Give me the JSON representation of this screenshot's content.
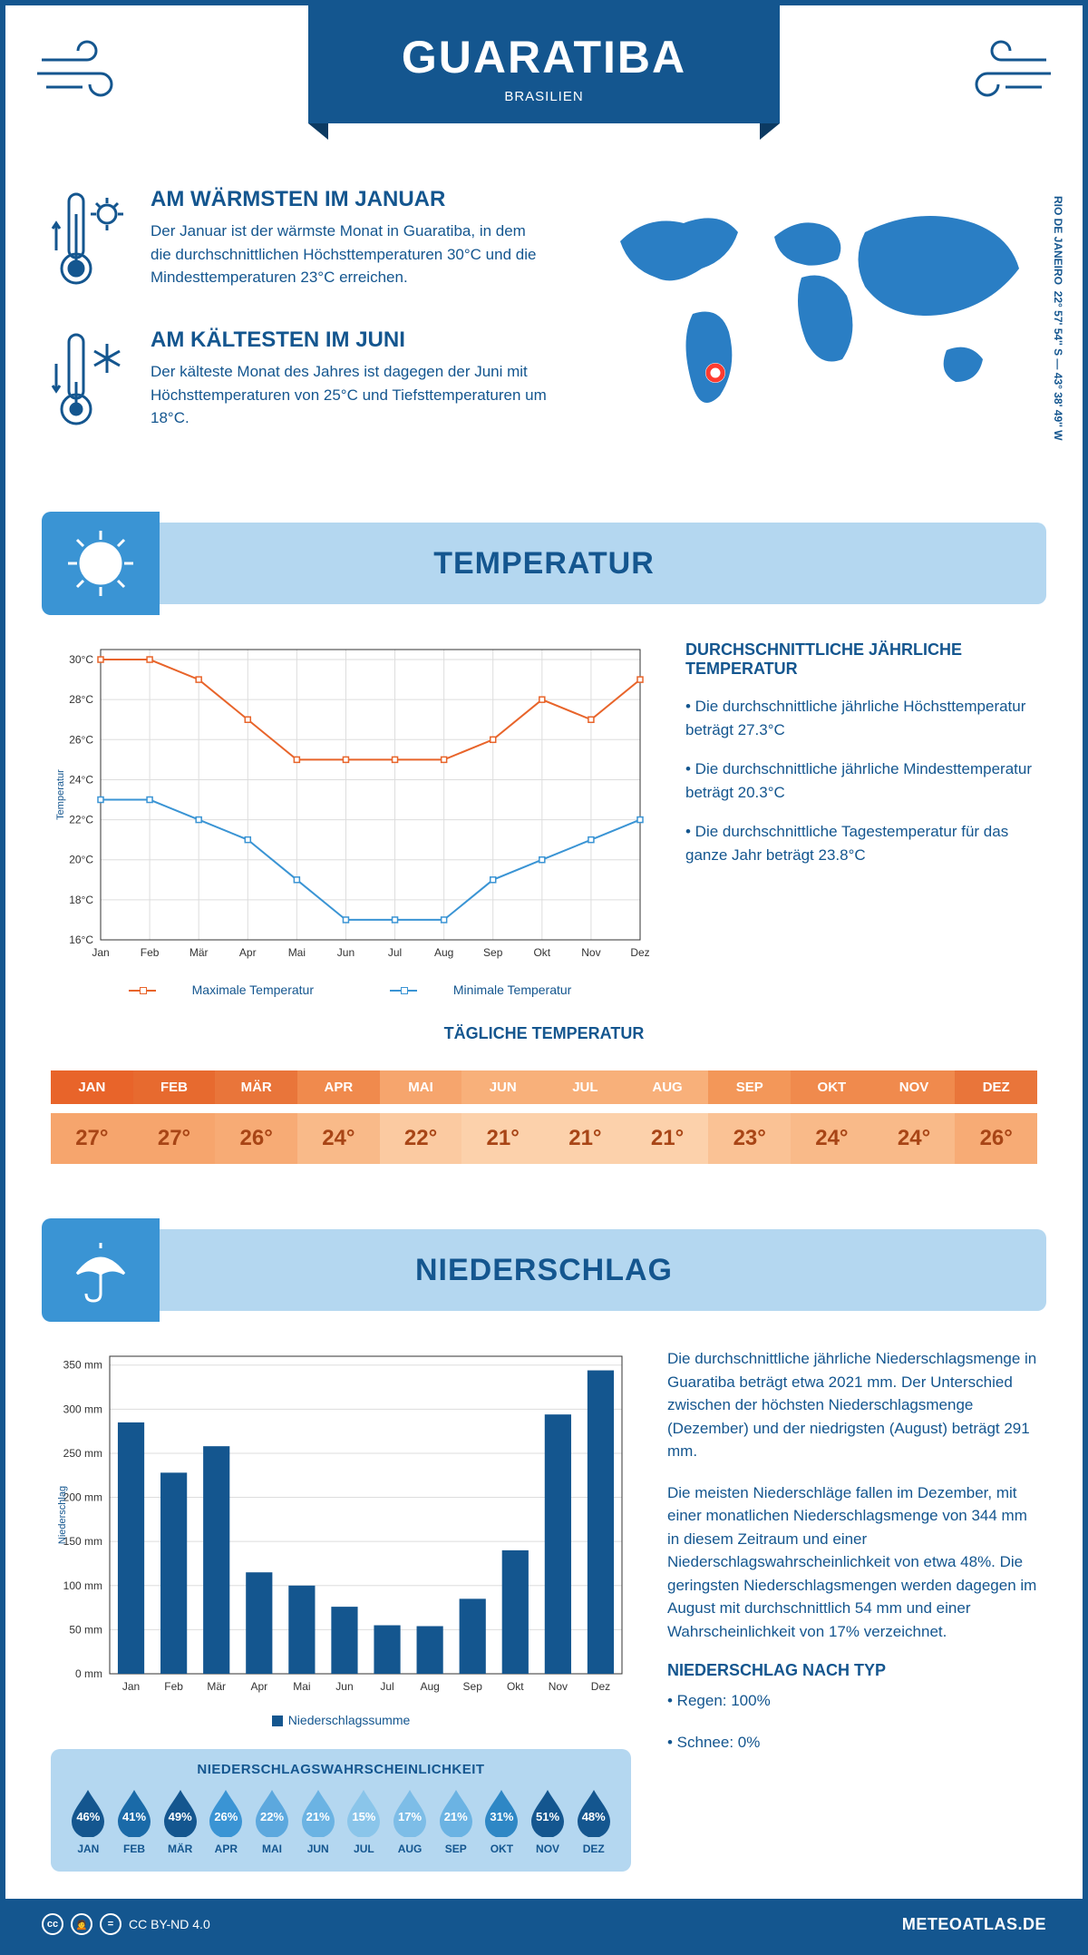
{
  "header": {
    "title": "GUARATIBA",
    "subtitle": "BRASILIEN"
  },
  "coords": {
    "line": "22° 57' 54'' S — 43° 38' 49'' W",
    "region": "RIO DE JANEIRO"
  },
  "intro": {
    "warm": {
      "title": "AM WÄRMSTEN IM JANUAR",
      "text": "Der Januar ist der wärmste Monat in Guaratiba, in dem die durchschnittlichen Höchsttemperaturen 30°C und die Mindesttemperaturen 23°C erreichen."
    },
    "cold": {
      "title": "AM KÄLTESTEN IM JUNI",
      "text": "Der kälteste Monat des Jahres ist dagegen der Juni mit Höchsttemperaturen von 25°C und Tiefsttemperaturen um 18°C."
    }
  },
  "sections": {
    "temp": "TEMPERATUR",
    "precip": "NIEDERSCHLAG"
  },
  "temp_chart": {
    "type": "line",
    "y_label": "Temperatur",
    "months": [
      "Jan",
      "Feb",
      "Mär",
      "Apr",
      "Mai",
      "Jun",
      "Jul",
      "Aug",
      "Sep",
      "Okt",
      "Nov",
      "Dez"
    ],
    "yticks": [
      16,
      18,
      20,
      22,
      24,
      26,
      28,
      30
    ],
    "ytick_labels": [
      "16°C",
      "18°C",
      "20°C",
      "22°C",
      "24°C",
      "26°C",
      "28°C",
      "30°C"
    ],
    "ylim": [
      16,
      30.5
    ],
    "series": [
      {
        "name": "Maximale Temperatur",
        "color": "#e8642a",
        "values": [
          30,
          30,
          29,
          27,
          25,
          25,
          25,
          25,
          26,
          28,
          27,
          29
        ]
      },
      {
        "name": "Minimale Temperatur",
        "color": "#3a94d4",
        "values": [
          23,
          23,
          22,
          21,
          19,
          17,
          17,
          17,
          19,
          20,
          21,
          22
        ]
      }
    ],
    "grid_color": "#dddddd",
    "axis_color": "#333333",
    "label_fontsize": 12,
    "background_color": "#ffffff"
  },
  "temp_side": {
    "title": "DURCHSCHNITTLICHE JÄHRLICHE TEMPERATUR",
    "bullets": [
      "• Die durchschnittliche jährliche Höchsttemperatur beträgt 27.3°C",
      "• Die durchschnittliche jährliche Mindesttemperatur beträgt 20.3°C",
      "• Die durchschnittliche Tagestemperatur für das ganze Jahr beträgt 23.8°C"
    ]
  },
  "daily_temp": {
    "title": "TÄGLICHE TEMPERATUR",
    "months": [
      "JAN",
      "FEB",
      "MÄR",
      "APR",
      "MAI",
      "JUN",
      "JUL",
      "AUG",
      "SEP",
      "OKT",
      "NOV",
      "DEZ"
    ],
    "values": [
      "27°",
      "27°",
      "26°",
      "24°",
      "22°",
      "21°",
      "21°",
      "21°",
      "23°",
      "24°",
      "24°",
      "26°"
    ],
    "top_colors": [
      "#e8642a",
      "#e76a2f",
      "#e9753a",
      "#f08a4d",
      "#f6a56d",
      "#f8b07a",
      "#f8b07a",
      "#f8b07a",
      "#f39759",
      "#f08a4d",
      "#f08a4d",
      "#e9753a"
    ],
    "bot_colors": [
      "#f6a56d",
      "#f6a56d",
      "#f7ab75",
      "#f9ba89",
      "#fbcaa1",
      "#fcd1ab",
      "#fcd1ab",
      "#fcd1ab",
      "#fac295",
      "#f9ba89",
      "#f9ba89",
      "#f7ab75"
    ],
    "top_text_color": "#ffffff",
    "bot_text_color": "#a84516"
  },
  "precip_chart": {
    "type": "bar",
    "y_label": "Niederschlag",
    "months": [
      "Jan",
      "Feb",
      "Mär",
      "Apr",
      "Mai",
      "Jun",
      "Jul",
      "Aug",
      "Sep",
      "Okt",
      "Nov",
      "Dez"
    ],
    "yticks": [
      0,
      50,
      100,
      150,
      200,
      250,
      300,
      350
    ],
    "ytick_labels": [
      "0 mm",
      "50 mm",
      "100 mm",
      "150 mm",
      "200 mm",
      "250 mm",
      "300 mm",
      "350 mm"
    ],
    "ylim": [
      0,
      360
    ],
    "values": [
      285,
      228,
      258,
      115,
      100,
      76,
      55,
      54,
      85,
      140,
      294,
      344
    ],
    "bar_color": "#14568f",
    "grid_color": "#dddddd",
    "axis_color": "#333333",
    "label_fontsize": 12,
    "legend": "Niederschlagssumme"
  },
  "precip_text": {
    "p1": "Die durchschnittliche jährliche Niederschlagsmenge in Guaratiba beträgt etwa 2021 mm. Der Unterschied zwischen der höchsten Niederschlagsmenge (Dezember) und der niedrigsten (August) beträgt 291 mm.",
    "p2": "Die meisten Niederschläge fallen im Dezember, mit einer monatlichen Niederschlagsmenge von 344 mm in diesem Zeitraum und einer Niederschlagswahrscheinlichkeit von etwa 48%. Die geringsten Niederschlagsmengen werden dagegen im August mit durchschnittlich 54 mm und einer Wahrscheinlichkeit von 17% verzeichnet.",
    "type_title": "NIEDERSCHLAG NACH TYP",
    "type_rain": "• Regen: 100%",
    "type_snow": "• Schnee: 0%"
  },
  "prob": {
    "title": "NIEDERSCHLAGSWAHRSCHEINLICHKEIT",
    "months": [
      "JAN",
      "FEB",
      "MÄR",
      "APR",
      "MAI",
      "JUN",
      "JUL",
      "AUG",
      "SEP",
      "OKT",
      "NOV",
      "DEZ"
    ],
    "values": [
      "46%",
      "41%",
      "49%",
      "26%",
      "22%",
      "21%",
      "15%",
      "17%",
      "21%",
      "31%",
      "51%",
      "48%"
    ],
    "colors": [
      "#14568f",
      "#1a6aa8",
      "#14568f",
      "#3a94d4",
      "#5ca8de",
      "#6bb3e3",
      "#8ac5ea",
      "#7dbde7",
      "#6bb3e3",
      "#2e87c5",
      "#14568f",
      "#14568f"
    ]
  },
  "footer": {
    "license": "CC BY-ND 4.0",
    "brand": "METEOATLAS.DE"
  },
  "colors": {
    "primary": "#14568f",
    "light_blue": "#b4d7f0",
    "mid_blue": "#3a94d4",
    "map_blue": "#2a7ec4",
    "marker_fill": "#ff3b2f"
  }
}
